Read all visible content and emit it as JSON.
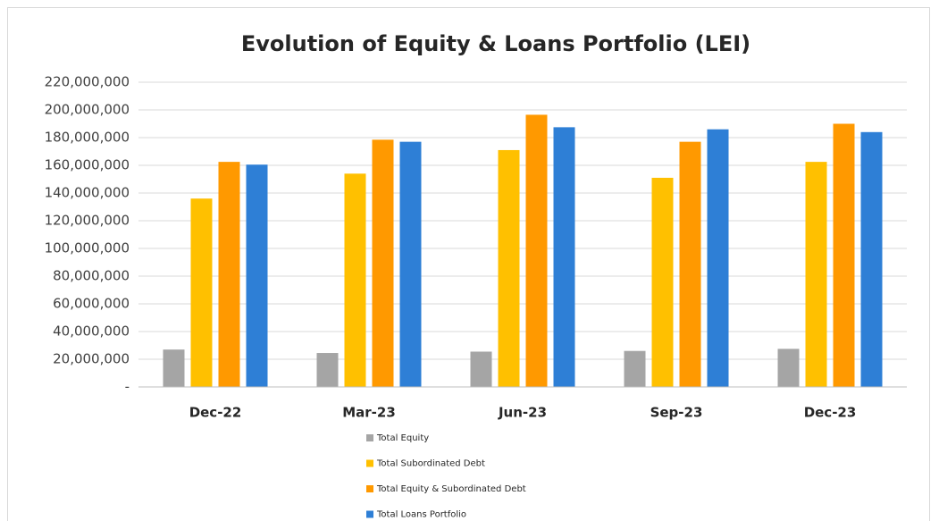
{
  "chart_data": {
    "type": "bar",
    "title": "Evolution of Equity & Loans Portfolio  (LEI)",
    "categories": [
      "Dec-22",
      "Mar-23",
      "Jun-23",
      "Sep-23",
      "Dec-23"
    ],
    "series": [
      {
        "name": "Total Equity",
        "color": "#a5a5a5",
        "values": [
          27000000,
          24500000,
          25500000,
          26000000,
          27500000
        ]
      },
      {
        "name": "Total Subordinated Debt",
        "color": "#ffc000",
        "values": [
          136000000,
          154000000,
          171000000,
          151000000,
          162500000
        ]
      },
      {
        "name": "Total Equity & Subordinated Debt",
        "color": "#ff9900",
        "values": [
          162500000,
          178500000,
          196500000,
          177000000,
          190000000
        ]
      },
      {
        "name": "Total Loans Portfolio",
        "color": "#2e7fd6",
        "values": [
          160500000,
          177000000,
          187500000,
          186000000,
          184000000
        ]
      }
    ],
    "ylim": [
      0,
      220000000
    ],
    "yticks": [
      {
        "value": 0,
        "label": "-"
      },
      {
        "value": 20000000,
        "label": "20,000,000"
      },
      {
        "value": 40000000,
        "label": "40,000,000"
      },
      {
        "value": 60000000,
        "label": "60,000,000"
      },
      {
        "value": 80000000,
        "label": "80,000,000"
      },
      {
        "value": 100000000,
        "label": "100,000,000"
      },
      {
        "value": 120000000,
        "label": "120,000,000"
      },
      {
        "value": 140000000,
        "label": "140,000,000"
      },
      {
        "value": 160000000,
        "label": "160,000,000"
      },
      {
        "value": 180000000,
        "label": "180,000,000"
      },
      {
        "value": 200000000,
        "label": "200,000,000"
      },
      {
        "value": 220000000,
        "label": "220,000,000"
      }
    ],
    "grid": true,
    "legend": "bottom"
  }
}
